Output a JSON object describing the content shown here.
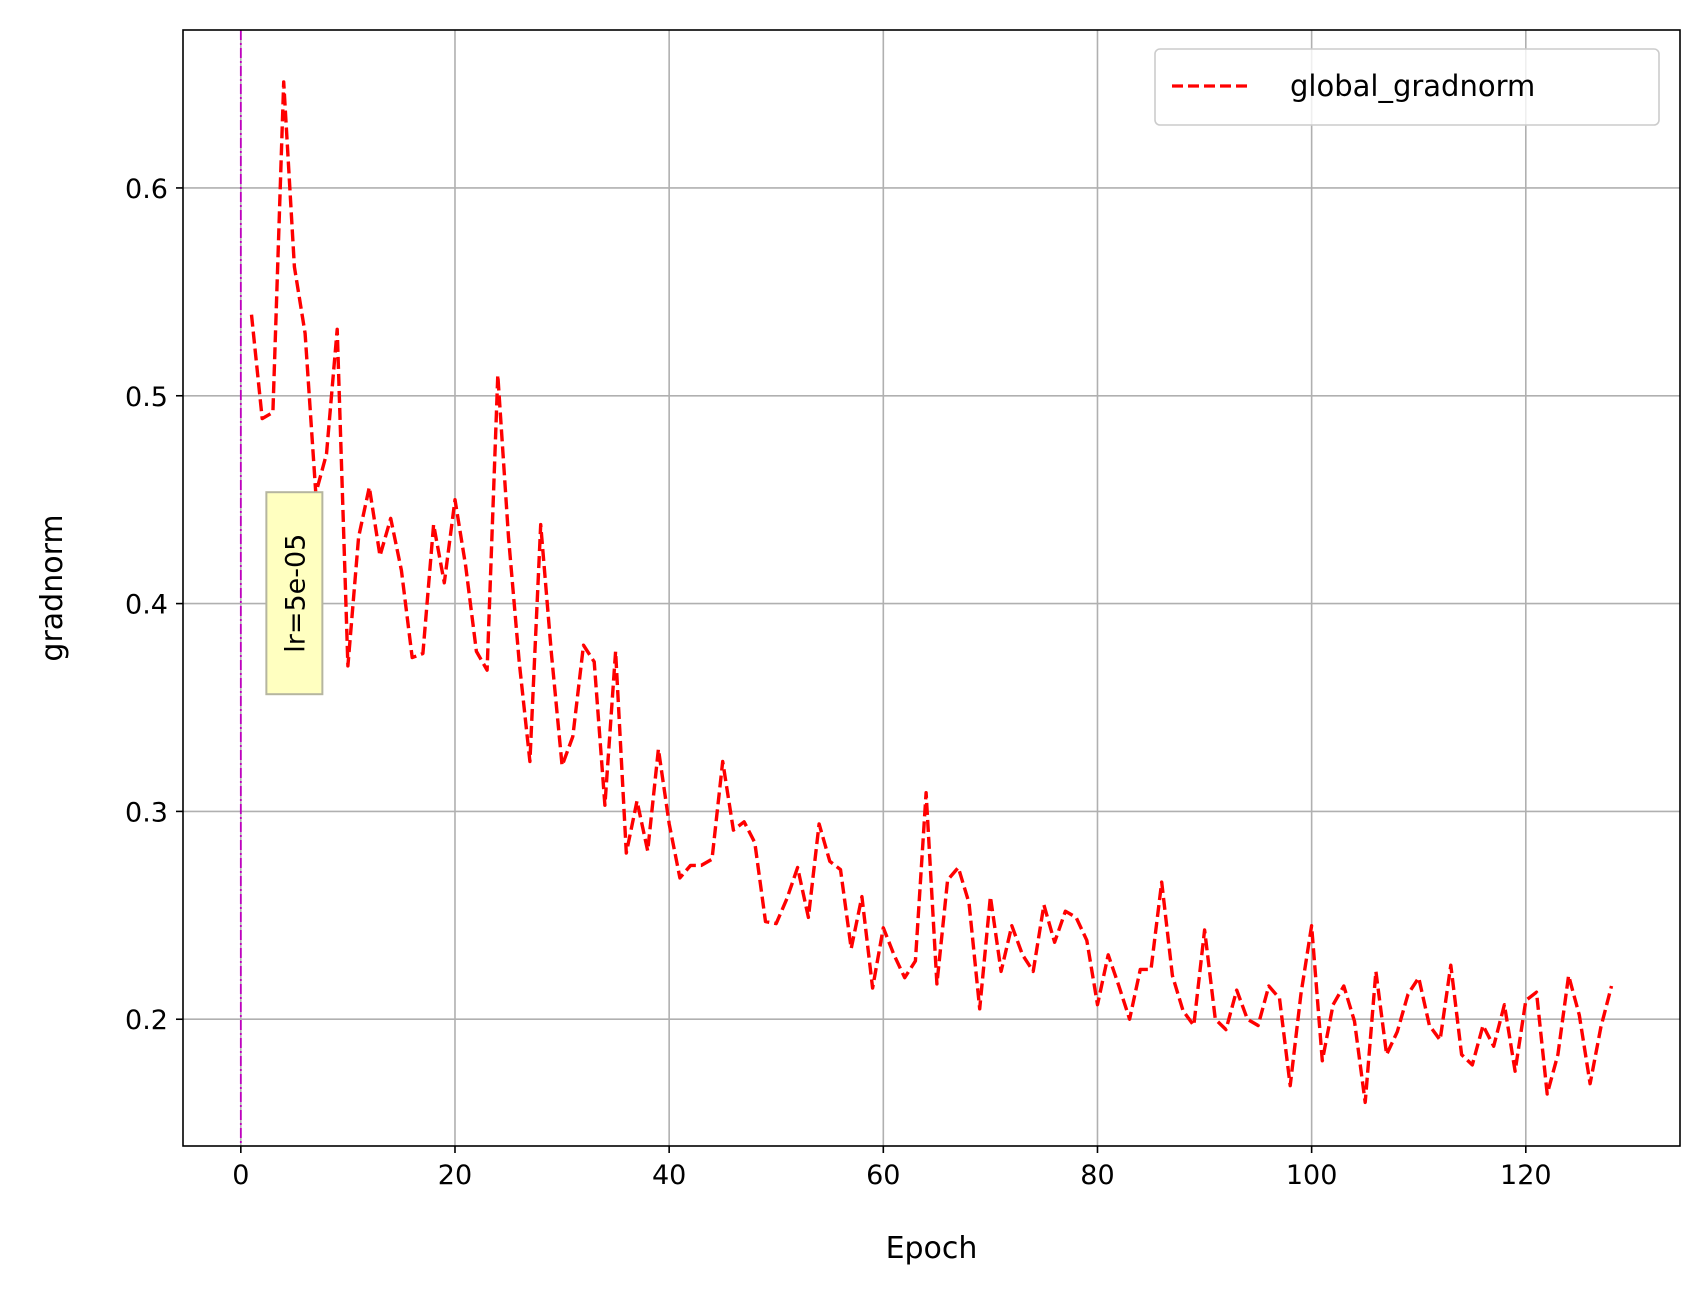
{
  "chart_data": {
    "type": "line",
    "title": "",
    "xlabel": "Epoch",
    "ylabel": "gradnorm",
    "xlim": [
      -5.4,
      134.4
    ],
    "ylim": [
      0.139,
      0.676
    ],
    "xticks": [
      0,
      20,
      40,
      60,
      80,
      100,
      120
    ],
    "yticks": [
      0.2,
      0.3,
      0.4,
      0.5,
      0.6
    ],
    "xtick_labels": [
      "0",
      "20",
      "40",
      "60",
      "80",
      "100",
      "120"
    ],
    "ytick_labels": [
      "0.2",
      "0.3",
      "0.4",
      "0.5",
      "0.6"
    ],
    "grid": true,
    "legend_position": "top-right",
    "series": [
      {
        "name": "global_gradnorm",
        "color": "#ff0000",
        "line_style": "dashed",
        "x": [
          1,
          2,
          3,
          4,
          5,
          6,
          7,
          8,
          9,
          10,
          11,
          12,
          13,
          14,
          15,
          16,
          17,
          18,
          19,
          20,
          21,
          22,
          23,
          24,
          25,
          26,
          27,
          28,
          29,
          30,
          31,
          32,
          33,
          34,
          35,
          36,
          37,
          38,
          39,
          40,
          41,
          42,
          43,
          44,
          45,
          46,
          47,
          48,
          49,
          50,
          51,
          52,
          53,
          54,
          55,
          56,
          57,
          58,
          59,
          60,
          61,
          62,
          63,
          64,
          65,
          66,
          67,
          68,
          69,
          70,
          71,
          72,
          73,
          74,
          75,
          76,
          77,
          78,
          79,
          80,
          81,
          82,
          83,
          84,
          85,
          86,
          87,
          88,
          89,
          90,
          91,
          92,
          93,
          94,
          95,
          96,
          97,
          98,
          99,
          100,
          101,
          102,
          103,
          104,
          105,
          106,
          107,
          108,
          109,
          110,
          111,
          112,
          113,
          114,
          115,
          116,
          117,
          118,
          119,
          120,
          121,
          122,
          123,
          124,
          125,
          126,
          127,
          128
        ],
        "values": [
          0.539,
          0.489,
          0.492,
          0.651,
          0.562,
          0.53,
          0.453,
          0.472,
          0.532,
          0.37,
          0.432,
          0.456,
          0.423,
          0.441,
          0.416,
          0.374,
          0.376,
          0.438,
          0.41,
          0.45,
          0.418,
          0.377,
          0.368,
          0.51,
          0.432,
          0.372,
          0.324,
          0.438,
          0.376,
          0.322,
          0.336,
          0.38,
          0.372,
          0.303,
          0.377,
          0.28,
          0.305,
          0.281,
          0.33,
          0.294,
          0.268,
          0.274,
          0.274,
          0.277,
          0.324,
          0.291,
          0.295,
          0.285,
          0.247,
          0.246,
          0.258,
          0.273,
          0.249,
          0.294,
          0.276,
          0.272,
          0.234,
          0.259,
          0.215,
          0.244,
          0.231,
          0.22,
          0.228,
          0.309,
          0.217,
          0.267,
          0.273,
          0.256,
          0.205,
          0.259,
          0.223,
          0.245,
          0.231,
          0.223,
          0.255,
          0.237,
          0.252,
          0.249,
          0.238,
          0.207,
          0.231,
          0.216,
          0.2,
          0.224,
          0.224,
          0.266,
          0.221,
          0.204,
          0.197,
          0.243,
          0.2,
          0.195,
          0.214,
          0.2,
          0.197,
          0.216,
          0.21,
          0.168,
          0.212,
          0.245,
          0.18,
          0.207,
          0.216,
          0.199,
          0.16,
          0.223,
          0.183,
          0.194,
          0.212,
          0.22,
          0.197,
          0.19,
          0.226,
          0.183,
          0.178,
          0.197,
          0.187,
          0.207,
          0.175,
          0.209,
          0.213,
          0.164,
          0.183,
          0.221,
          0.202,
          0.169,
          0.196,
          0.216
        ]
      }
    ],
    "vline": {
      "x": 0,
      "color": "#bf00bf",
      "line_style": "dashdot"
    },
    "annotations": [
      {
        "text": "lr=5e-05",
        "x": 5,
        "y": 0.405,
        "rotation": -90,
        "bbox_color": "#ffffc0"
      }
    ]
  }
}
